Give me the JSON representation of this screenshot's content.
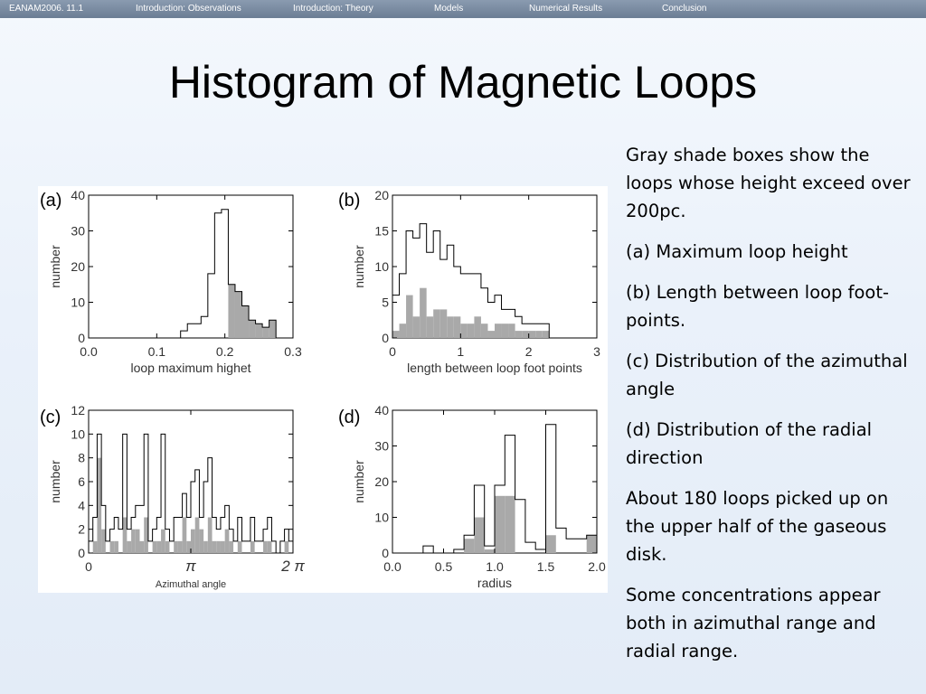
{
  "nav": {
    "items": [
      "EANAM2006. 11.1",
      "Introduction: Observations",
      "Introduction: Theory",
      "Models",
      "Numerical Results",
      "Conclusion"
    ]
  },
  "slide": {
    "title": "Histogram of Magnetic Loops"
  },
  "side": {
    "paragraphs": [
      "Gray shade boxes show the loops whose height exceed over 200pc.",
      "(a) Maximum loop height",
      "(b) Length between loop foot-points.",
      "(c) Distribution of the azimuthal angle",
      "(d) Distribution of the radial direction",
      "About 180 loops picked up on the upper half of the gaseous disk.",
      "Some concentrations  appear both in azimuthal range and radial range."
    ]
  },
  "colors": {
    "fill_gray": "#a9a9a9",
    "nav_bg": "#7889a0",
    "outline": "#000000"
  },
  "chart_data": [
    {
      "panel": "(a)",
      "type": "bar",
      "xlabel": "loop  maximum  highet",
      "ylabel": "number",
      "xlim": [
        0,
        0.3
      ],
      "ylim": [
        0,
        40
      ],
      "xticks": [
        "0.0",
        "0.1",
        "0.2",
        "0.3"
      ],
      "yticks": [
        "0",
        "10",
        "20",
        "30",
        "40"
      ],
      "bin_start": 0.135,
      "bin_width": 0.01,
      "series": [
        {
          "values": [
            2,
            4,
            4,
            6,
            18,
            35,
            36,
            15,
            13,
            9,
            5,
            4,
            3,
            5
          ]
        },
        {
          "values": [
            0,
            0,
            0,
            0,
            0,
            0,
            0,
            15,
            13,
            9,
            5,
            4,
            3,
            5
          ]
        }
      ]
    },
    {
      "panel": "(b)",
      "type": "bar",
      "xlabel": "length  between  loop  foot  points",
      "ylabel": "number",
      "xlim": [
        0,
        3
      ],
      "ylim": [
        0,
        20
      ],
      "xticks": [
        "0",
        "1",
        "2",
        "3"
      ],
      "yticks": [
        "0",
        "5",
        "10",
        "15",
        "20"
      ],
      "bin_start": 0.0,
      "bin_width": 0.1,
      "series": [
        {
          "values": [
            6,
            9,
            15,
            14,
            16,
            12,
            15,
            11,
            13,
            10,
            9,
            9,
            9,
            7,
            5,
            6,
            4,
            4,
            3,
            2,
            2,
            2,
            2,
            0
          ]
        },
        {
          "values": [
            1,
            2,
            6,
            3,
            7,
            3,
            4,
            4,
            3,
            3,
            2,
            2,
            3,
            2,
            1,
            2,
            2,
            2,
            1,
            1,
            1,
            1,
            1,
            0
          ]
        }
      ]
    },
    {
      "panel": "(c)",
      "type": "bar",
      "xlabel": "Azimuthal angle",
      "ylabel": "number",
      "xlim": [
        0,
        6.2832
      ],
      "ylim": [
        0,
        12
      ],
      "xticks": [
        "0",
        "π",
        "2 π"
      ],
      "yticks": [
        "0",
        "2",
        "4",
        "6",
        "8",
        "10",
        "12"
      ],
      "bin_start": 0.0,
      "bin_width": 0.1309,
      "series": [
        {
          "values": [
            1,
            3,
            10,
            4,
            1,
            2,
            3,
            2,
            10,
            2,
            3,
            4,
            4,
            10,
            1,
            2,
            3,
            10,
            2,
            1,
            3,
            3,
            5,
            3,
            6,
            7,
            3,
            6,
            8,
            3,
            2,
            3,
            4,
            2,
            1,
            3,
            1,
            1,
            3,
            1,
            1,
            2,
            3,
            1,
            0,
            1,
            2,
            1
          ]
        },
        {
          "values": [
            0,
            1,
            8,
            2,
            0,
            1,
            1,
            0,
            3,
            1,
            2,
            2,
            1,
            3,
            0,
            1,
            1,
            2,
            1,
            0,
            1,
            1,
            3,
            1,
            2,
            3,
            2,
            1,
            3,
            1,
            1,
            1,
            2,
            1,
            0,
            1,
            0,
            0,
            1,
            0,
            0,
            1,
            1,
            0,
            0,
            0,
            1,
            0
          ]
        }
      ]
    },
    {
      "panel": "(d)",
      "type": "bar",
      "xlabel": "radius",
      "ylabel": "number",
      "xlim": [
        0,
        2.0
      ],
      "ylim": [
        0,
        40
      ],
      "xticks": [
        "0.0",
        "0.5",
        "1.0",
        "1.5",
        "2.0"
      ],
      "yticks": [
        "0",
        "10",
        "20",
        "30",
        "40"
      ],
      "bin_start": 0.0,
      "bin_width": 0.1,
      "series": [
        {
          "values": [
            0,
            0,
            0,
            2,
            0,
            0,
            1,
            5,
            19,
            2,
            19,
            33,
            15,
            3,
            1,
            36,
            7,
            4,
            4,
            5
          ]
        },
        {
          "values": [
            0,
            0,
            0,
            0,
            0,
            0,
            0,
            4,
            10,
            1,
            16,
            16,
            0,
            0,
            0,
            5,
            0,
            0,
            0,
            5
          ]
        }
      ]
    }
  ]
}
